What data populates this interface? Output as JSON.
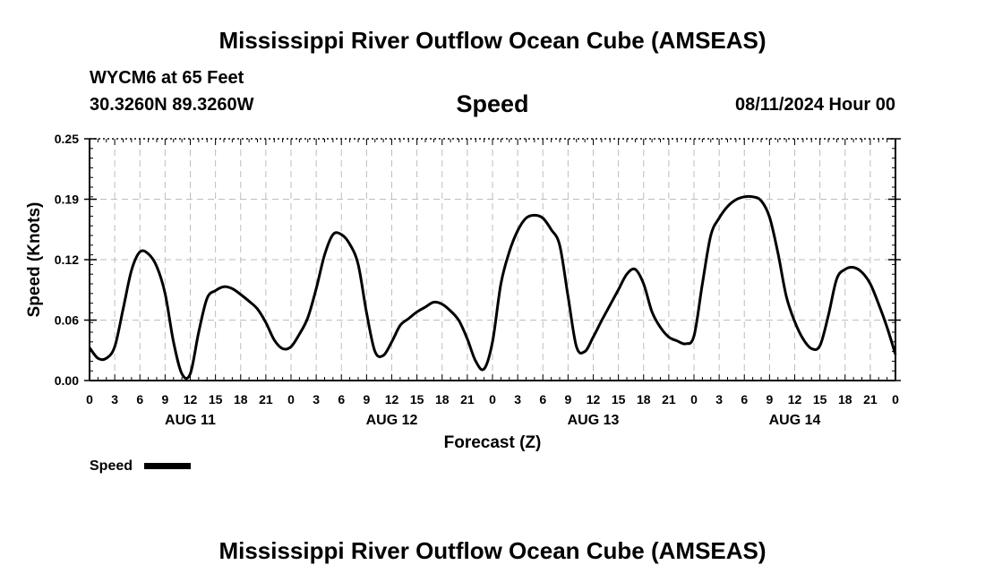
{
  "header": {
    "title": "Mississippi River Outflow Ocean Cube (AMSEAS)",
    "station": "WYCM6 at 65 Feet",
    "coords": "30.3260N  89.3260W",
    "variable": "Speed",
    "datetime": "08/11/2024 Hour 00"
  },
  "footer": {
    "title": "Mississippi River Outflow Ocean Cube (AMSEAS)"
  },
  "chart_data": {
    "type": "line",
    "ylabel": "Speed (Knots)",
    "xlabel": "Forecast (Z)",
    "ylim": [
      0.0,
      0.25
    ],
    "yticks": [
      "0.00",
      "0.06",
      "0.12",
      "0.19",
      "0.25"
    ],
    "xlim_hours": [
      0,
      96
    ],
    "xticks": [
      "0",
      "3",
      "6",
      "9",
      "12",
      "15",
      "18",
      "21",
      "0",
      "3",
      "6",
      "9",
      "12",
      "15",
      "18",
      "21",
      "0",
      "3",
      "6",
      "9",
      "12",
      "15",
      "18",
      "21",
      "0",
      "3",
      "6",
      "9",
      "12",
      "15",
      "18",
      "21",
      "0"
    ],
    "date_labels": [
      {
        "label": "AUG 11",
        "hour": 12
      },
      {
        "label": "AUG 12",
        "hour": 36
      },
      {
        "label": "AUG 13",
        "hour": 60
      },
      {
        "label": "AUG 14",
        "hour": 84
      }
    ],
    "grid": true,
    "legend": {
      "position": "bottom-left",
      "label": "Speed"
    },
    "series": [
      {
        "name": "Speed",
        "color": "#000000",
        "x": [
          0,
          1,
          2,
          3,
          4,
          5,
          6,
          7,
          8,
          9,
          10,
          11,
          12,
          13,
          14,
          15,
          16,
          17,
          18,
          19,
          20,
          21,
          22,
          23,
          24,
          25,
          26,
          27,
          28,
          29,
          30,
          31,
          32,
          33,
          34,
          35,
          36,
          37,
          38,
          39,
          40,
          41,
          42,
          43,
          44,
          45,
          46,
          47,
          48,
          49,
          50,
          51,
          52,
          53,
          54,
          55,
          56,
          57,
          58,
          59,
          60,
          61,
          62,
          63,
          64,
          65,
          66,
          67,
          68,
          69,
          70,
          71,
          72,
          73,
          74,
          75,
          76,
          77,
          78,
          79,
          80,
          81,
          82,
          83,
          84,
          85,
          86,
          87,
          88,
          89,
          90,
          91,
          92,
          93,
          94,
          95,
          96
        ],
        "values": [
          0.034,
          0.023,
          0.023,
          0.035,
          0.074,
          0.114,
          0.133,
          0.131,
          0.118,
          0.09,
          0.04,
          0.007,
          0.007,
          0.05,
          0.085,
          0.093,
          0.097,
          0.095,
          0.089,
          0.082,
          0.074,
          0.06,
          0.042,
          0.033,
          0.035,
          0.048,
          0.065,
          0.095,
          0.13,
          0.151,
          0.151,
          0.141,
          0.12,
          0.07,
          0.03,
          0.026,
          0.04,
          0.057,
          0.064,
          0.071,
          0.076,
          0.081,
          0.079,
          0.072,
          0.062,
          0.043,
          0.02,
          0.012,
          0.04,
          0.1,
          0.133,
          0.155,
          0.168,
          0.171,
          0.168,
          0.156,
          0.14,
          0.087,
          0.035,
          0.03,
          0.045,
          0.062,
          0.078,
          0.094,
          0.11,
          0.115,
          0.1,
          0.071,
          0.055,
          0.045,
          0.041,
          0.038,
          0.046,
          0.1,
          0.15,
          0.168,
          0.18,
          0.187,
          0.19,
          0.19,
          0.186,
          0.169,
          0.132,
          0.087,
          0.061,
          0.043,
          0.033,
          0.036,
          0.067,
          0.105,
          0.115,
          0.117,
          0.112,
          0.1,
          0.079,
          0.055,
          0.027
        ]
      }
    ]
  }
}
